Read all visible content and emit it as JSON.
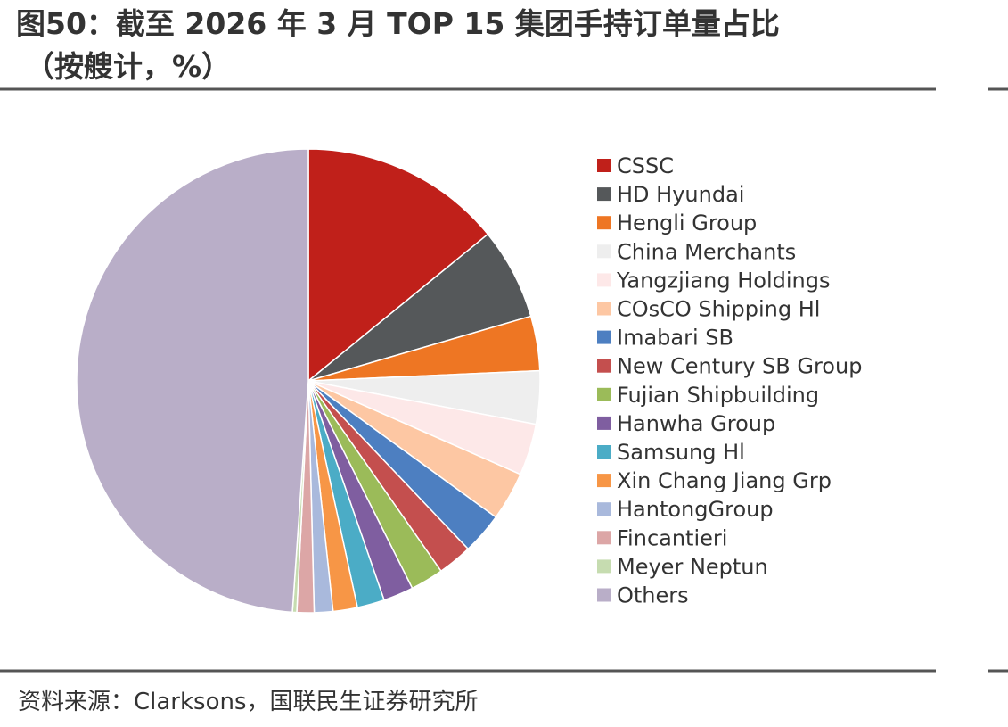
{
  "chart_data": {
    "type": "pie",
    "title_lines": [
      "图50：截至 2026 年 3 月 TOP 15 集团手持订单量占比",
      "（按艘计，%）"
    ],
    "source": "资料来源：Clarksons，国联民生证券研究所",
    "categories": [
      "CSSC",
      "HD Hyundai",
      "Hengli Group",
      "China Merchants",
      "Yangzjiang Holdings",
      "COsCO Shipping Hl",
      "Imabari SB",
      "New Century SB Group",
      "Fujian Shipbuilding",
      "Hanwha Group",
      "Samsung Hl",
      "Xin Chang Jiang Grp",
      "HantongGroup",
      "Fincantieri",
      "Meyer Neptun",
      "Others"
    ],
    "values": [
      14.1,
      6.4,
      3.8,
      3.7,
      3.6,
      3.4,
      2.9,
      2.4,
      2.3,
      2.1,
      1.9,
      1.7,
      1.3,
      1.2,
      0.3,
      48.9
    ],
    "colors": [
      "#c0201a",
      "#55585a",
      "#ee7623",
      "#eeeeee",
      "#fde8e8",
      "#fdc7a3",
      "#4d7fc1",
      "#c44f4e",
      "#9bbb59",
      "#7f5ea0",
      "#4bacc6",
      "#f79646",
      "#a9b9dc",
      "#dca6a6",
      "#c6dcb0",
      "#b9aec8"
    ],
    "legend": "right"
  }
}
